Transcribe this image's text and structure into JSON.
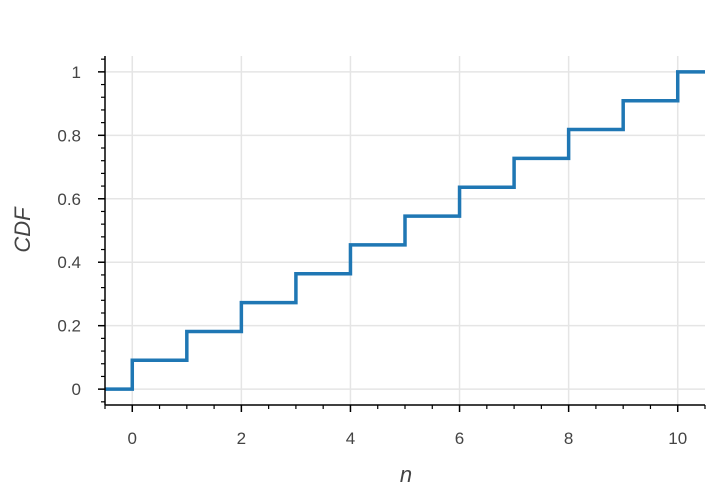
{
  "chart_data": {
    "type": "line",
    "step": "post",
    "title": "",
    "xlabel": "n",
    "ylabel": "CDF",
    "xlim": [
      -0.5,
      10.5
    ],
    "ylim": [
      -0.05,
      1.05
    ],
    "x": [
      -0.5,
      0,
      1,
      2,
      3,
      4,
      5,
      6,
      7,
      8,
      9,
      10,
      10.5
    ],
    "y": [
      0,
      0.0909,
      0.1818,
      0.2727,
      0.3636,
      0.4545,
      0.5455,
      0.6364,
      0.7273,
      0.8182,
      0.9091,
      1.0,
      1.0
    ],
    "x_ticks": [
      0,
      2,
      4,
      6,
      8,
      10
    ],
    "x_tick_labels": [
      "0",
      "2",
      "4",
      "6",
      "8",
      "10"
    ],
    "y_ticks": [
      0,
      0.2,
      0.4,
      0.6,
      0.8,
      1
    ],
    "y_tick_labels": [
      "0",
      "0.2",
      "0.4",
      "0.6",
      "0.8",
      "1"
    ],
    "grid": true,
    "line_color": "#1f77b4",
    "grid_color": "#e5e5e5",
    "axis_color": "#000000"
  }
}
